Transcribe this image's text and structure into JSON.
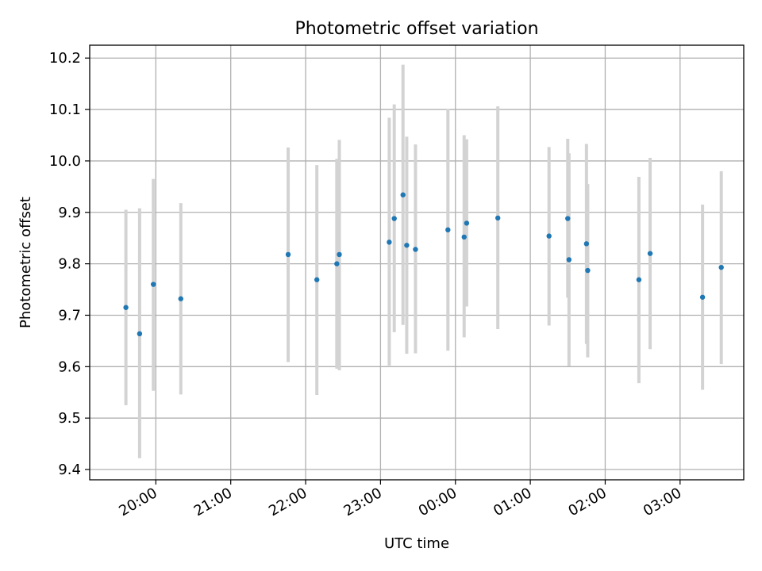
{
  "chart_data": {
    "type": "scatter",
    "title": "Photometric offset variation",
    "xlabel": "UTC time",
    "ylabel": "Photometric offset",
    "xlim": [
      "19:07",
      "03:51"
    ],
    "ylim": [
      9.38,
      10.225
    ],
    "grid": true,
    "x_axis_format": "HH:MM (UTC)",
    "x_tick_labels": [
      "20:00",
      "21:00",
      "22:00",
      "23:00",
      "00:00",
      "01:00",
      "02:00",
      "03:00"
    ],
    "y_ticks": [
      9.4,
      9.5,
      9.6,
      9.7,
      9.8,
      9.9,
      10.0,
      10.1,
      10.2
    ],
    "y_tick_labels": [
      "9.4",
      "9.5",
      "9.6",
      "9.7",
      "9.8",
      "9.9",
      "10.0",
      "10.1",
      "10.2"
    ],
    "colors": {
      "points": "#1f77b4",
      "errorbars": "#d3d3d3",
      "grid": "#b0b0b0"
    },
    "series": [
      {
        "points": [
          {
            "x": "19:36",
            "y": 9.715,
            "ylo": 9.525,
            "yhi": 9.905
          },
          {
            "x": "19:47",
            "y": 9.664,
            "ylo": 9.422,
            "yhi": 9.908
          },
          {
            "x": "19:58",
            "y": 9.76,
            "ylo": 9.553,
            "yhi": 9.965
          },
          {
            "x": "20:20",
            "y": 9.732,
            "ylo": 9.546,
            "yhi": 9.918
          },
          {
            "x": "21:46",
            "y": 9.818,
            "ylo": 9.609,
            "yhi": 10.026
          },
          {
            "x": "22:09",
            "y": 9.769,
            "ylo": 9.545,
            "yhi": 9.992
          },
          {
            "x": "22:25",
            "y": 9.8,
            "ylo": 9.596,
            "yhi": 10.004
          },
          {
            "x": "22:27",
            "y": 9.818,
            "ylo": 9.593,
            "yhi": 10.041
          },
          {
            "x": "23:07",
            "y": 9.842,
            "ylo": 9.602,
            "yhi": 10.084
          },
          {
            "x": "23:11",
            "y": 9.888,
            "ylo": 9.667,
            "yhi": 10.11
          },
          {
            "x": "23:18",
            "y": 9.934,
            "ylo": 9.681,
            "yhi": 10.187
          },
          {
            "x": "23:21",
            "y": 9.836,
            "ylo": 9.625,
            "yhi": 10.047
          },
          {
            "x": "23:28",
            "y": 9.828,
            "ylo": 9.626,
            "yhi": 10.032
          },
          {
            "x": "23:54",
            "y": 9.866,
            "ylo": 9.631,
            "yhi": 10.101
          },
          {
            "x": "00:07",
            "y": 9.852,
            "ylo": 9.657,
            "yhi": 10.05
          },
          {
            "x": "00:09",
            "y": 9.879,
            "ylo": 9.717,
            "yhi": 10.042
          },
          {
            "x": "00:34",
            "y": 9.889,
            "ylo": 9.673,
            "yhi": 10.106
          },
          {
            "x": "01:15",
            "y": 9.854,
            "ylo": 9.68,
            "yhi": 10.027
          },
          {
            "x": "01:30",
            "y": 9.888,
            "ylo": 9.734,
            "yhi": 10.043
          },
          {
            "x": "01:31",
            "y": 9.808,
            "ylo": 9.601,
            "yhi": 10.015
          },
          {
            "x": "01:45",
            "y": 9.839,
            "ylo": 9.644,
            "yhi": 10.033
          },
          {
            "x": "01:46",
            "y": 9.787,
            "ylo": 9.618,
            "yhi": 9.955
          },
          {
            "x": "02:27",
            "y": 9.769,
            "ylo": 9.568,
            "yhi": 9.969
          },
          {
            "x": "02:36",
            "y": 9.82,
            "ylo": 9.634,
            "yhi": 10.006
          },
          {
            "x": "03:18",
            "y": 9.735,
            "ylo": 9.555,
            "yhi": 9.915
          },
          {
            "x": "03:33",
            "y": 9.793,
            "ylo": 9.605,
            "yhi": 9.98
          }
        ]
      }
    ]
  }
}
